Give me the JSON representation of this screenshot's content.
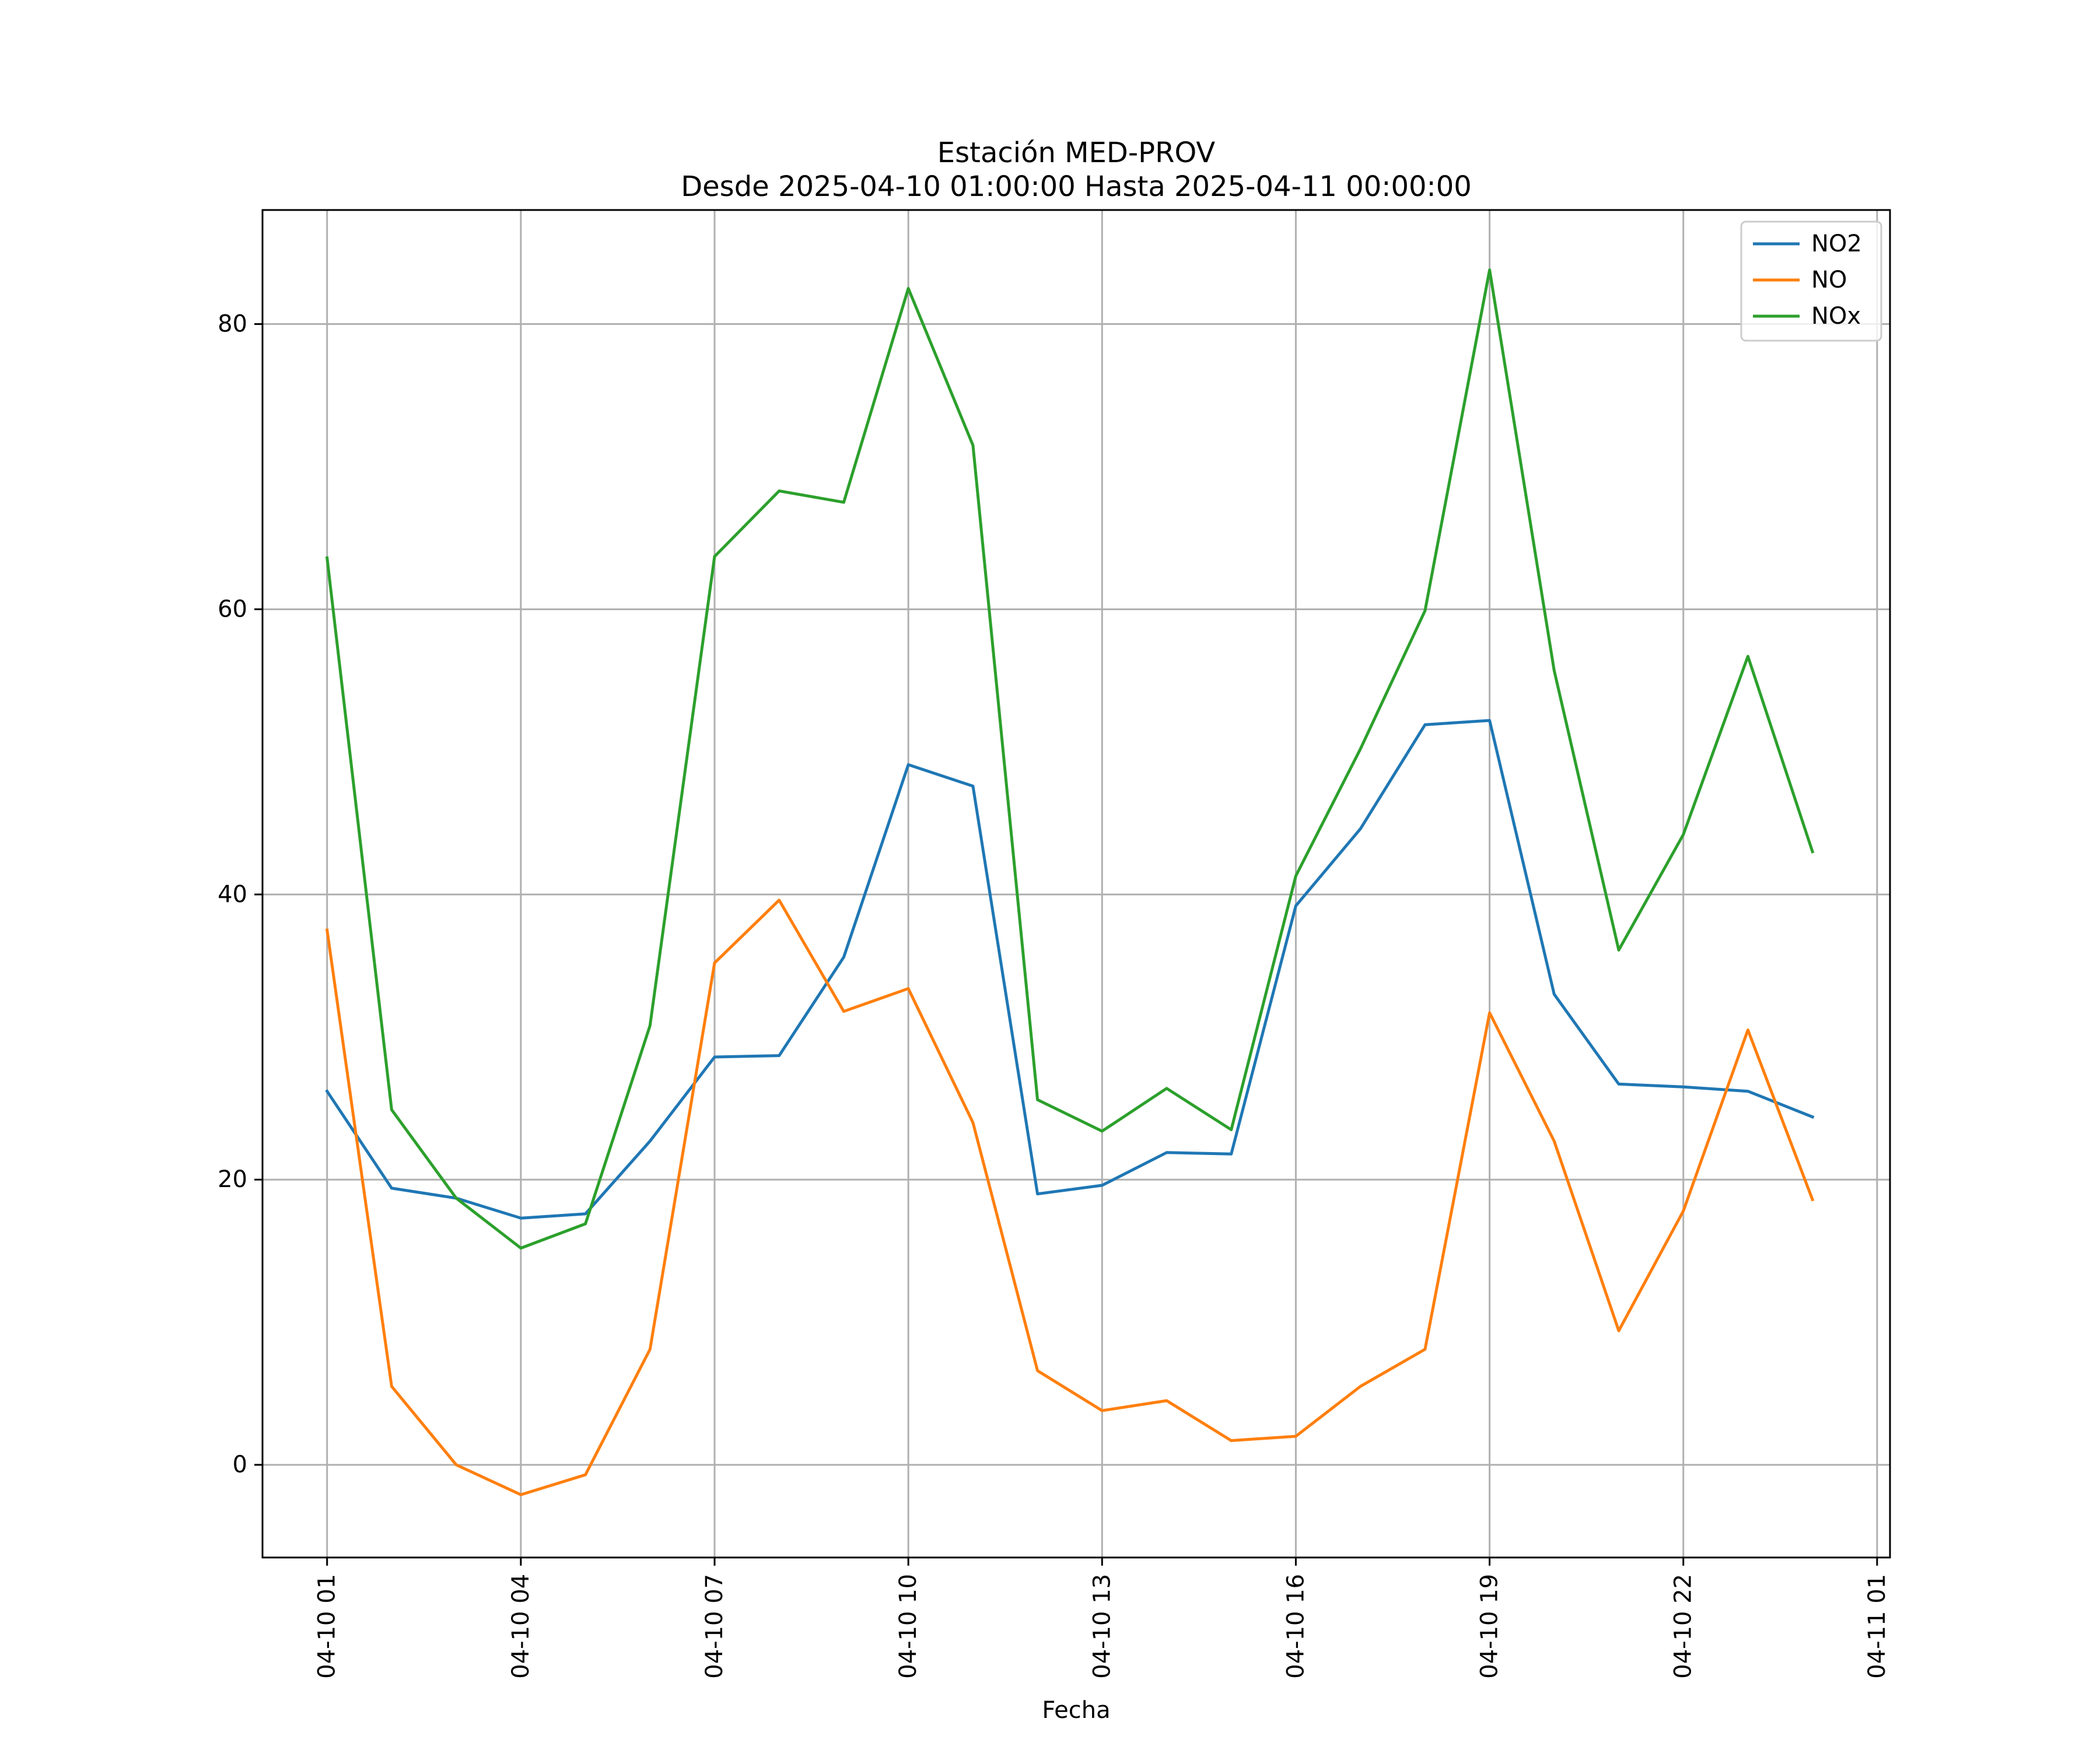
{
  "chart_data": {
    "type": "line",
    "title": "Estación MED-PROV",
    "subtitle": "Desde 2025-04-10 01:00:00 Hasta 2025-04-11 00:00:00",
    "xlabel": "Fecha",
    "ylabel": "",
    "x": [
      "2025-04-10 01:00",
      "2025-04-10 02:00",
      "2025-04-10 03:00",
      "2025-04-10 04:00",
      "2025-04-10 05:00",
      "2025-04-10 06:00",
      "2025-04-10 07:00",
      "2025-04-10 08:00",
      "2025-04-10 09:00",
      "2025-04-10 10:00",
      "2025-04-10 11:00",
      "2025-04-10 12:00",
      "2025-04-10 13:00",
      "2025-04-10 14:00",
      "2025-04-10 15:00",
      "2025-04-10 16:00",
      "2025-04-10 17:00",
      "2025-04-10 18:00",
      "2025-04-10 19:00",
      "2025-04-10 20:00",
      "2025-04-10 21:00",
      "2025-04-10 22:00",
      "2025-04-10 23:00",
      "2025-04-11 00:00"
    ],
    "xlim": [
      "2025-04-10 00:00",
      "2025-04-11 01:12"
    ],
    "ylim": [
      -6.5,
      88
    ],
    "x_ticks": [
      "04-10 01",
      "04-10 04",
      "04-10 07",
      "04-10 10",
      "04-10 13",
      "04-10 16",
      "04-10 19",
      "04-10 22",
      "04-11 01"
    ],
    "x_tick_values": [
      "2025-04-10 01:00",
      "2025-04-10 04:00",
      "2025-04-10 07:00",
      "2025-04-10 10:00",
      "2025-04-10 13:00",
      "2025-04-10 16:00",
      "2025-04-10 19:00",
      "2025-04-10 22:00",
      "2025-04-11 01:00"
    ],
    "y_ticks": [
      0,
      20,
      40,
      60,
      80
    ],
    "grid": true,
    "legend_position": "top-right",
    "series": [
      {
        "name": "NO2",
        "color": "#1f77b4",
        "values": [
          26.2,
          19.4,
          18.7,
          17.3,
          17.6,
          22.7,
          28.6,
          28.7,
          35.6,
          49.1,
          47.6,
          19.0,
          19.6,
          21.9,
          21.8,
          39.2,
          44.6,
          51.9,
          52.2,
          33.0,
          26.7,
          26.5,
          26.2,
          24.4
        ]
      },
      {
        "name": "NO",
        "color": "#ff7f0e",
        "values": [
          37.5,
          5.5,
          0.0,
          -2.1,
          -0.7,
          8.1,
          35.2,
          39.6,
          31.8,
          33.4,
          24.0,
          6.6,
          3.8,
          4.5,
          1.7,
          2.0,
          5.5,
          8.1,
          31.7,
          22.7,
          9.4,
          17.8,
          30.5,
          18.6
        ]
      },
      {
        "name": "NOx",
        "color": "#2ca02c",
        "values": [
          63.6,
          24.9,
          18.7,
          15.2,
          16.9,
          30.8,
          63.7,
          68.3,
          67.5,
          82.5,
          71.5,
          25.6,
          23.4,
          26.4,
          23.5,
          41.3,
          50.2,
          59.9,
          83.8,
          55.7,
          36.1,
          44.2,
          56.7,
          43.0
        ]
      }
    ]
  }
}
